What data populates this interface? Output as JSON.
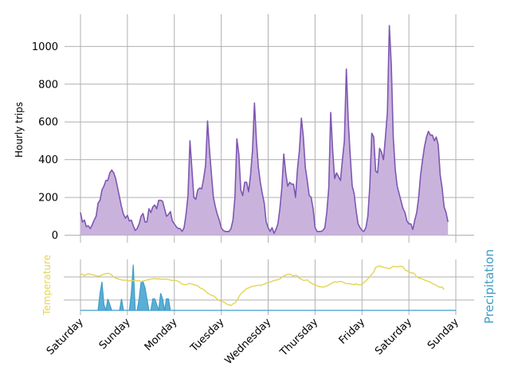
{
  "chart_data": [
    {
      "type": "area",
      "panel": "top",
      "title": "",
      "xlabel": "",
      "ylabel": "Hourly trips",
      "xlim": [
        0,
        192
      ],
      "ylim": [
        -40,
        1170
      ],
      "yticks": [
        0,
        200,
        400,
        600,
        800,
        1000
      ],
      "grid": true,
      "legend": "none",
      "x_day_boundaries": [
        0,
        24,
        48,
        72,
        96,
        120,
        144,
        168,
        192
      ],
      "series": [
        {
          "name": "Hourly trips",
          "color": "#7e57b2",
          "fill": "#c9b3dd",
          "values": [
            120,
            70,
            80,
            45,
            50,
            35,
            55,
            80,
            100,
            170,
            185,
            240,
            260,
            290,
            290,
            330,
            345,
            330,
            300,
            250,
            200,
            150,
            110,
            90,
            105,
            75,
            80,
            50,
            25,
            35,
            60,
            100,
            115,
            70,
            70,
            140,
            120,
            150,
            160,
            140,
            185,
            185,
            180,
            140,
            100,
            110,
            125,
            75,
            60,
            45,
            35,
            35,
            20,
            40,
            110,
            210,
            500,
            350,
            200,
            190,
            240,
            250,
            245,
            300,
            370,
            605,
            450,
            320,
            200,
            150,
            110,
            80,
            40,
            25,
            20,
            20,
            20,
            35,
            80,
            200,
            510,
            430,
            240,
            210,
            280,
            280,
            230,
            320,
            450,
            700,
            500,
            360,
            280,
            220,
            170,
            70,
            40,
            20,
            40,
            10,
            30,
            60,
            140,
            250,
            430,
            330,
            260,
            280,
            270,
            270,
            200,
            350,
            450,
            620,
            520,
            360,
            290,
            210,
            200,
            140,
            40,
            20,
            20,
            20,
            25,
            40,
            120,
            250,
            650,
            450,
            300,
            330,
            310,
            290,
            400,
            500,
            880,
            600,
            420,
            260,
            220,
            130,
            60,
            40,
            25,
            20,
            40,
            100,
            260,
            540,
            520,
            340,
            330,
            460,
            440,
            400,
            520,
            650,
            1110,
            900,
            520,
            350,
            260,
            220,
            180,
            140,
            120,
            75,
            60,
            60,
            30,
            80,
            120,
            200,
            320,
            400,
            470,
            520,
            550,
            530,
            530,
            500,
            520,
            480,
            320,
            250,
            150,
            120,
            70
          ]
        }
      ]
    },
    {
      "type": "line",
      "panel": "bottom",
      "title": "",
      "ylabel_left": "Temperature",
      "ylabel_right": "Precipitation",
      "xlim": [
        0,
        192
      ],
      "xticklabels": [
        "Saturday",
        "Sunday",
        "Monday",
        "Tuesday",
        "Wednesday",
        "Thursday",
        "Friday",
        "Saturday",
        "Sunday"
      ],
      "xticks": [
        0,
        24,
        48,
        72,
        96,
        120,
        144,
        168,
        192
      ],
      "legend": "none",
      "series": [
        {
          "name": "Temperature",
          "color": "#e3d455",
          "values": [
            12.5,
            12.8,
            12.0,
            12.6,
            13.0,
            12.8,
            12.5,
            12.3,
            12.0,
            11.8,
            12.0,
            12.4,
            12.8,
            13.0,
            13.2,
            13.0,
            12.4,
            11.4,
            10.9,
            10.7,
            10.3,
            10.1,
            9.9,
            10.0,
            9.7,
            9.6,
            9.9,
            9.7,
            9.9,
            9.6,
            9.8,
            9.1,
            9.6,
            9.7,
            10.1,
            10.2,
            10.5,
            10.6,
            10.7,
            10.4,
            10.7,
            10.3,
            10.5,
            10.4,
            10.4,
            10.3,
            10.0,
            9.8,
            9.9,
            9.7,
            9.4,
            8.9,
            8.1,
            7.9,
            7.8,
            8.2,
            8.4,
            8.1,
            7.9,
            7.5,
            7.4,
            6.4,
            6.0,
            5.5,
            4.8,
            3.9,
            3.4,
            2.8,
            2.6,
            1.9,
            1.0,
            0.3,
            0.2,
            -0.2,
            -0.7,
            -1.4,
            -1.6,
            -2.0,
            -1.2,
            -0.8,
            0.3,
            2.1,
            3.5,
            4.4,
            5.2,
            6.0,
            6.3,
            6.7,
            7.1,
            7.2,
            7.4,
            7.6,
            7.4,
            7.8,
            8.1,
            8.6,
            8.8,
            9.1,
            9.4,
            9.8,
            10.0,
            10.2,
            10.5,
            11.3,
            11.9,
            12.3,
            12.7,
            12.8,
            12.4,
            11.9,
            12.3,
            12.0,
            10.7,
            10.5,
            9.8,
            9.9,
            10.1,
            9.2,
            8.6,
            8.1,
            7.8,
            7.3,
            6.9,
            6.8,
            6.7,
            6.9,
            7.2,
            7.7,
            8.3,
            8.8,
            9.2,
            9.0,
            9.2,
            9.4,
            9.1,
            8.7,
            8.3,
            8.3,
            8.2,
            8.0,
            7.8,
            8.3,
            7.8,
            7.8,
            7.9,
            8.9,
            9.6,
            10.6,
            11.6,
            12.8,
            13.7,
            16.0,
            16.3,
            16.7,
            16.3,
            16.0,
            15.8,
            15.6,
            15.3,
            15.9,
            16.5,
            16.3,
            16.2,
            16.4,
            16.5,
            16.2,
            14.8,
            14.3,
            14.0,
            13.3,
            13.4,
            12.9,
            11.5,
            11.0,
            10.8,
            10.5,
            10.0,
            9.6,
            9.4,
            9.0,
            8.4,
            8.0,
            7.6,
            6.9,
            6.5,
            6.8,
            5.5
          ]
        },
        {
          "name": "Precipitation",
          "type": "area",
          "color": "#3f9dc9",
          "fill": "#5aaed6",
          "values": [
            0,
            0,
            0,
            0,
            0,
            0,
            0,
            0,
            0,
            0,
            3,
            5,
            1,
            0,
            2,
            1,
            0,
            0,
            0,
            0,
            0,
            2,
            0,
            0,
            0,
            0,
            3,
            8,
            0,
            0,
            2,
            5,
            5,
            4,
            2,
            0,
            0,
            2,
            2,
            1,
            0,
            3,
            2,
            0,
            2,
            2,
            0,
            0,
            0,
            0,
            0,
            0,
            0,
            0,
            0,
            0,
            0,
            0,
            0,
            0,
            0,
            0,
            0,
            0,
            0,
            0,
            0,
            0,
            0,
            0,
            0,
            0,
            0,
            0,
            0,
            0,
            0,
            0,
            0,
            0,
            0,
            0,
            0,
            0,
            0,
            0,
            0,
            0,
            0,
            0,
            0,
            0,
            0,
            0,
            0,
            0,
            0,
            0,
            0,
            0,
            0,
            0,
            0,
            0,
            0,
            0,
            0,
            0,
            0,
            0,
            0,
            0,
            0,
            0,
            0,
            0,
            0,
            0,
            0,
            0,
            0,
            0,
            0,
            0,
            0,
            0,
            0,
            0,
            0,
            0,
            0,
            0,
            0,
            0,
            0,
            0,
            0,
            0,
            0,
            0,
            0,
            0,
            0,
            0,
            0,
            0,
            0,
            0,
            0,
            0,
            0,
            0,
            0,
            0,
            0,
            0,
            0,
            0,
            0,
            0,
            0,
            0,
            0,
            0,
            0,
            0,
            0,
            0,
            0,
            0,
            0,
            0,
            0,
            0,
            0,
            0,
            0,
            0,
            0,
            0,
            0,
            0,
            0,
            0,
            0,
            0,
            0,
            0,
            0,
            0,
            0,
            0,
            0
          ]
        }
      ]
    }
  ]
}
